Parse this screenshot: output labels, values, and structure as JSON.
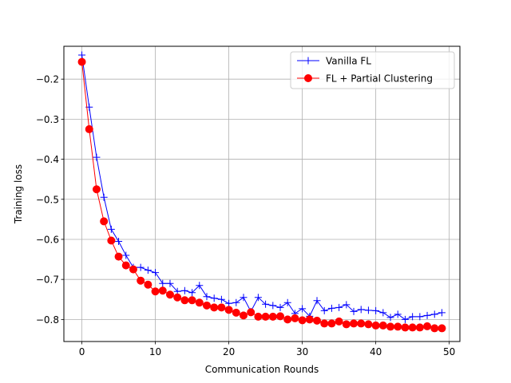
{
  "chart_data": {
    "type": "line",
    "xlabel": "Communication Rounds",
    "ylabel": "Training loss",
    "xlim": [
      -2.45,
      51.45
    ],
    "ylim": [
      -0.855,
      -0.118
    ],
    "xticks": [
      0,
      10,
      20,
      30,
      40,
      50
    ],
    "yticks": [
      -0.8,
      -0.7,
      -0.6,
      -0.5,
      -0.4,
      -0.3,
      -0.2
    ],
    "ytick_labels": [
      "−0.8",
      "−0.7",
      "−0.6",
      "−0.5",
      "−0.4",
      "−0.3",
      "−0.2"
    ],
    "grid": true,
    "legend_position": "upper right",
    "x": [
      0,
      1,
      2,
      3,
      4,
      5,
      6,
      7,
      8,
      9,
      10,
      11,
      12,
      13,
      14,
      15,
      16,
      17,
      18,
      19,
      20,
      21,
      22,
      23,
      24,
      25,
      26,
      27,
      28,
      29,
      30,
      31,
      32,
      33,
      34,
      35,
      36,
      37,
      38,
      39,
      40,
      41,
      42,
      43,
      44,
      45,
      46,
      47,
      48,
      49
    ],
    "series": [
      {
        "name": "Vanilla FL",
        "color": "#0000ff",
        "marker": "plus",
        "values": [
          -0.14,
          -0.27,
          -0.395,
          -0.495,
          -0.575,
          -0.605,
          -0.64,
          -0.67,
          -0.67,
          -0.677,
          -0.683,
          -0.71,
          -0.71,
          -0.73,
          -0.728,
          -0.733,
          -0.715,
          -0.743,
          -0.747,
          -0.75,
          -0.76,
          -0.758,
          -0.745,
          -0.78,
          -0.745,
          -0.762,
          -0.765,
          -0.77,
          -0.758,
          -0.785,
          -0.773,
          -0.792,
          -0.753,
          -0.778,
          -0.772,
          -0.77,
          -0.763,
          -0.78,
          -0.775,
          -0.777,
          -0.778,
          -0.783,
          -0.795,
          -0.787,
          -0.8,
          -0.793,
          -0.793,
          -0.79,
          -0.787,
          -0.783
        ]
      },
      {
        "name": "FL + Partial Clustering",
        "color": "#ff0000",
        "marker": "circle",
        "values": [
          -0.157,
          -0.325,
          -0.475,
          -0.555,
          -0.603,
          -0.643,
          -0.665,
          -0.675,
          -0.703,
          -0.713,
          -0.73,
          -0.728,
          -0.738,
          -0.745,
          -0.752,
          -0.752,
          -0.758,
          -0.765,
          -0.77,
          -0.77,
          -0.776,
          -0.783,
          -0.79,
          -0.782,
          -0.793,
          -0.793,
          -0.793,
          -0.792,
          -0.8,
          -0.797,
          -0.802,
          -0.8,
          -0.803,
          -0.81,
          -0.81,
          -0.805,
          -0.812,
          -0.81,
          -0.81,
          -0.812,
          -0.815,
          -0.815,
          -0.818,
          -0.818,
          -0.82,
          -0.82,
          -0.82,
          -0.817,
          -0.822,
          -0.822
        ]
      }
    ]
  }
}
